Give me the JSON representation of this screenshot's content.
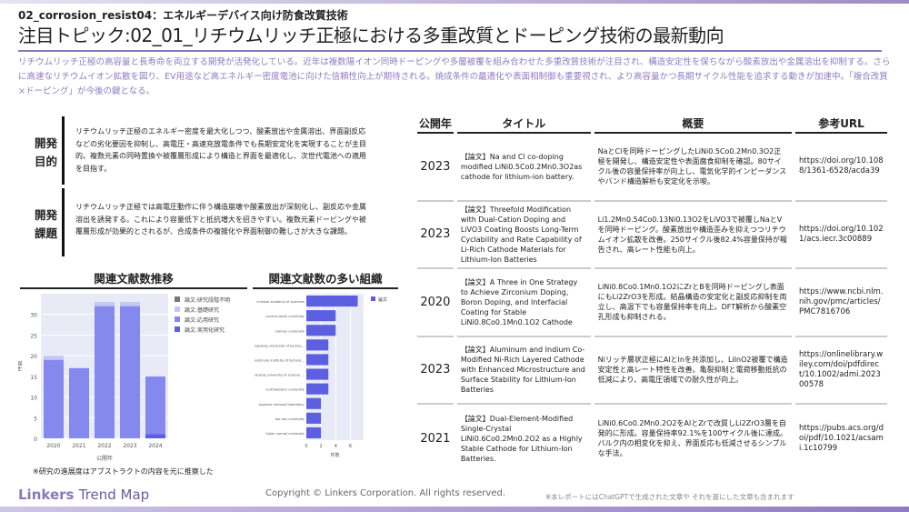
{
  "header": {
    "subtitle": "02_corrosion_resist04：エネルギーデバイス向け防食改質技術",
    "title": "注目トピック:02_01_リチウムリッチ正極における多重改質とドーピング技術の最新動向",
    "lead": "リチウムリッチ正極の高容量と長寿命を両立する開発が活発化している。近年は複数陽イオン同時ドーピングや多層被覆を組み合わせた多重改質技術が注目され、構造安定性を保ちながら酸素放出や金属溶出を抑制する。さらに高速なリチウムイオン拡散を図り、EV用途など高エネルギー密度電池に向けた信頼性向上が期待される。焼成条件の最適化や表面相制御も重要視され、より高容量かつ長期サイクル性能を追求する動きが加速中。「複合改質×ドーピング」が今後の鍵となる。"
  },
  "purpose": {
    "label": "開発目的",
    "text": "リチウムリッチ正極のエネルギー密度を最大化しつつ、酸素放出や金属溶出、界面副反応などの劣化要因を抑制し、高電圧・高速充放電条件でも長期安定化を実現することが主目的。複数元素の同時置換や被覆層形成により構造と界面を最適化し、次世代電池への適用を目指す。"
  },
  "issue": {
    "label": "開発課題",
    "text": "リチウムリッチ正極では高電圧動作に伴う構造崩壊や酸素放出が深刻化し、副反応や金属溶出を誘発する。これにより容量低下と抵抗増大を招きやすい。複数元素ドーピングや被覆層形成が効果的とされるが、合成条件の複雑化や界面制御の難しさが大きな課題。"
  },
  "chart_data": [
    {
      "type": "bar",
      "stacked": true,
      "title": "関連文献数推移",
      "xlabel": "公開年",
      "ylabel": "件数",
      "categories": [
        "2020",
        "2021",
        "2022",
        "2023",
        "2024"
      ],
      "ylim": [
        0,
        35
      ],
      "yticks": [
        0,
        5,
        10,
        15,
        20,
        25,
        30
      ],
      "legend_position": "right",
      "series": [
        {
          "name": "論文:実用化研究",
          "color": "#5b5fe0",
          "values": [
            0,
            0,
            0,
            0,
            1
          ]
        },
        {
          "name": "論文:応用研究",
          "color": "#8589ee",
          "values": [
            19,
            17,
            32,
            32,
            14
          ]
        },
        {
          "name": "論文:基礎研究",
          "color": "#c5c7f7",
          "values": [
            1,
            0,
            1,
            1,
            0
          ]
        },
        {
          "name": "論文:研究段階不明",
          "color": "#777777",
          "values": [
            0,
            0,
            0,
            0,
            0
          ]
        }
      ]
    },
    {
      "type": "bar",
      "orientation": "horizontal",
      "title": "関連文献数の多い組織",
      "xlabel": "件数",
      "xticks": [
        0,
        2,
        4,
        6
      ],
      "xlim": [
        0,
        7.8
      ],
      "legend_position": "top-right",
      "series": [
        {
          "name": "論文",
          "color": "#5b5fe0",
          "values": [
            7,
            4,
            4,
            3,
            3,
            3,
            3,
            2,
            2,
            2
          ]
        }
      ],
      "categories": [
        "chinese academy of sciences",
        "central south university",
        "xiamen university",
        "guangdong university of technology",
        "karlsruhe institute of technology",
        "nanjing university of science and technology",
        "northwestern university",
        "argonne national laboratory",
        "bar-ilan university",
        "fujian normal university"
      ]
    }
  ],
  "chart_note": "※研究の進展度はアブストラクトの内容を元に推察した",
  "table": {
    "headers": [
      "公開年",
      "タイトル",
      "概要",
      "参考URL"
    ],
    "rows": [
      {
        "year": "2023",
        "title": "【論文】Na and Cl co-doping modified LiNi0.5Co0.2Mn0.3O2as cathode for lithium-ion battery.",
        "summary": "NaとClを同時ドーピングしたLiNi0.5Co0.2Mn0.3O2正極を開発し、構造安定性や表面腐食抑制を確認。80サイクル後の容量保持率が向上し、電気化学的インピーダンスやバンド構造解析も安定化を示唆。",
        "url": "https://doi.org/10.1088/1361-6528/acda39"
      },
      {
        "year": "2023",
        "title": "【論文】Threefold Modification with Dual-Cation Doping and LiVO3 Coating Boosts Long-Term Cyclability and Rate Capability of Li-Rich Cathode Materials for Lithium-Ion Batteries",
        "summary": "Li1.2Mn0.54Co0.13Ni0.13O2をLiVO3で被覆しNaとVを同時ドーピング。酸素放出や構造歪みを抑えつつリチウムイオン拡散を改善。250サイクル後82.4%容量保持が報告され、高レート性能も向上。",
        "url": "https://doi.org/10.1021/acs.iecr.3c00889"
      },
      {
        "year": "2020",
        "title": "【論文】A Three in One Strategy to Achieve Zirconium Doping, Boron Doping, and Interfacial Coating for Stable LiNi0.8Co0.1Mn0.1O2 Cathode",
        "summary": "LiNi0.8Co0.1Mn0.1O2にZrとBを同時ドーピングし表面にもLi2ZrO3を形成。結晶構造の安定化と副反応抑制を両立し、高温下でも容量保持率を向上。DFT解析から酸素空孔形成も抑制される。",
        "url": "https://www.ncbi.nlm.nih.gov/pmc/articles/PMC7816706"
      },
      {
        "year": "2023",
        "title": "【論文】Aluminum and Indium Co-Modified Ni-Rich Layered Cathode with Enhanced Microstructure and Surface Stability for Lithium-Ion Batteries",
        "summary": "Niリッチ層状正極にAlとInを共添加し、LiInO2被覆で構造安定性と高レート特性を改善。亀裂抑制と電荷移動抵抗の低減により、高電圧領域での耐久性が向上。",
        "url": "https://onlinelibrary.wiley.com/doi/pdfdirect/10.1002/admi.202300578"
      },
      {
        "year": "2021",
        "title": "【論文】Dual-Element-Modified Single-Crystal LiNi0.6Co0.2Mn0.2O2 as a Highly Stable Cathode for Lithium-Ion Batteries.",
        "summary": "LiNi0.6Co0.2Mn0.2O2をAlとZrで改質しLi2ZrO3層を自発的に形成。容量保持率92.1%を100サイクル後に達成。バルク内の相変化を抑え、界面反応も低減させるシンプルな手法。",
        "url": "https://pubs.acs.org/doi/pdf/10.1021/acsami.1c10799"
      }
    ]
  },
  "footer": {
    "logo_main": "Linkers",
    "logo_sub": "Trend Map",
    "copyright": "Copyright © Linkers Corporation. All rights reserved.",
    "disclaimer": "※本レポートにはChatGPTで生成された文章や それを基にした文章も含まれます"
  }
}
